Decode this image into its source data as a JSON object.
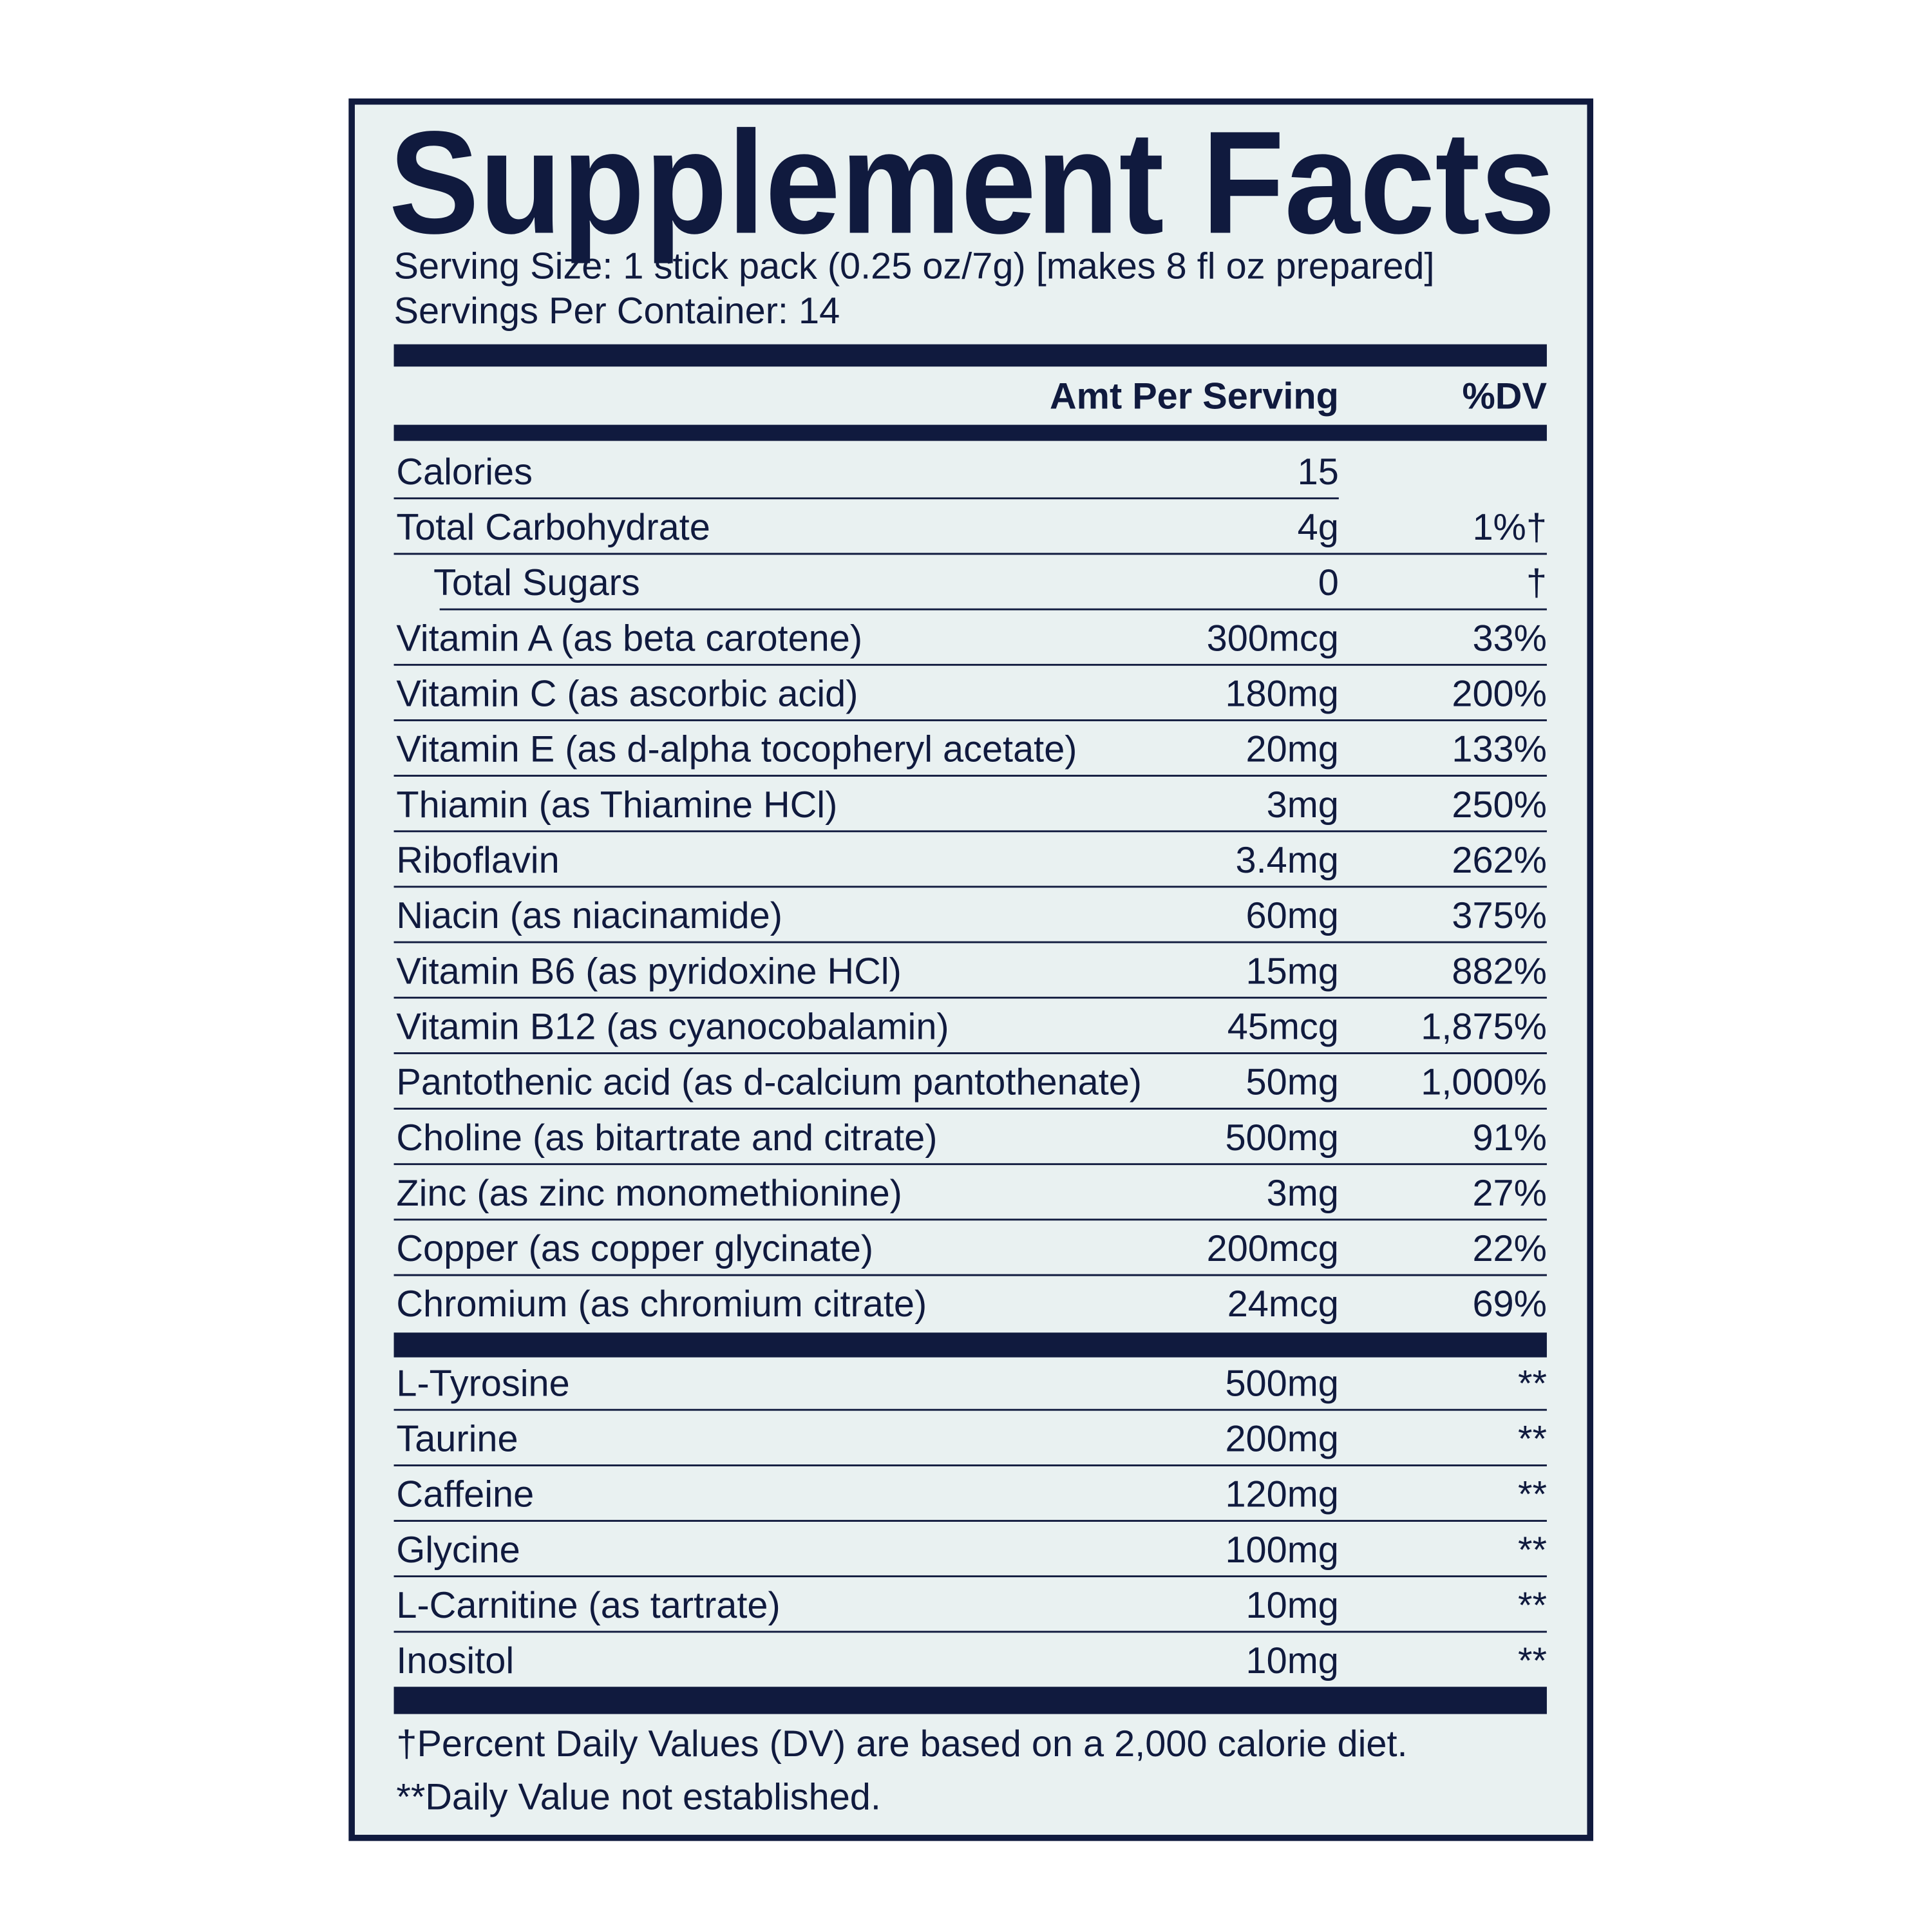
{
  "header": {
    "title": "Supplement Facts",
    "serving_size": "Serving Size: 1 stick pack (0.25 oz/7g) [makes 8 fl oz prepared]",
    "servings_per_container": "Servings Per Container: 14"
  },
  "table": {
    "columns": [
      "Amt Per Serving",
      "%DV"
    ],
    "rows": [
      {
        "name": "Calories",
        "amount": "15"
      },
      {
        "name": "Total Carbohydrate",
        "amount": "4g",
        "dv": "1%†"
      },
      {
        "name": "Total Sugars",
        "amount": "0",
        "dv": "†",
        "indented": true
      },
      {
        "name": "Vitamin A (as beta carotene)",
        "amount": "300mcg",
        "dv": "33%"
      },
      {
        "name": "Vitamin C (as ascorbic acid)",
        "amount": "180mg",
        "dv": "200%"
      },
      {
        "name": "Vitamin E (as d-alpha tocopheryl acetate)",
        "amount": "20mg",
        "dv": "133%"
      },
      {
        "name": "Thiamin (as Thiamine HCl)",
        "amount": "3mg",
        "dv": "250%"
      },
      {
        "name": "Riboflavin",
        "amount": "3.4mg",
        "dv": "262%"
      },
      {
        "name": "Niacin (as niacinamide)",
        "amount": "60mg",
        "dv": "375%"
      },
      {
        "name": "Vitamin B6 (as pyridoxine HCl)",
        "amount": "15mg",
        "dv": "882%"
      },
      {
        "name": "Vitamin B12 (as cyanocobalamin)",
        "amount": "45mcg",
        "dv": "1,875%"
      },
      {
        "name": "Pantothenic acid (as d-calcium pantothenate)",
        "amount": "50mg",
        "dv": "1,000%"
      },
      {
        "name": "Choline (as bitartrate and citrate)",
        "amount": "500mg",
        "dv": "91%"
      },
      {
        "name": "Zinc (as zinc monomethionine)",
        "amount": "3mg",
        "dv": "27%"
      },
      {
        "name": "Copper (as copper glycinate)",
        "amount": "200mcg",
        "dv": "22%"
      },
      {
        "name": "Chromium (as chromium citrate)",
        "amount": "24mcg",
        "dv": "69%"
      }
    ],
    "other_rows": [
      {
        "name": "L-Tyrosine",
        "amount": "500mg",
        "dv": "**"
      },
      {
        "name": "Taurine",
        "amount": "200mg",
        "dv": "**"
      },
      {
        "name": "Caffeine",
        "amount": "120mg",
        "dv": "**"
      },
      {
        "name": "Glycine",
        "amount": "100mg",
        "dv": "**"
      },
      {
        "name": "L-Carnitine (as tartrate)",
        "amount": "10mg",
        "dv": "**"
      },
      {
        "name": "Inositol",
        "amount": "10mg",
        "dv": "**"
      }
    ]
  },
  "footnotes": [
    "†Percent Daily Values (DV) are based on a 2,000 calorie diet.",
    "**Daily Value not established."
  ]
}
